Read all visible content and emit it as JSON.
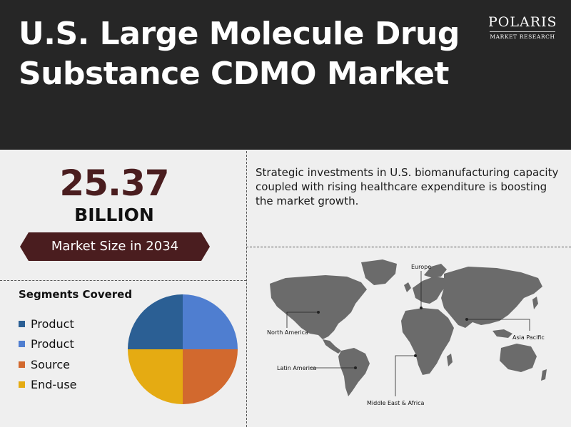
{
  "header": {
    "title": "U.S. Large Molecule Drug Substance CDMO Market",
    "logo_name": "POLARIS",
    "logo_sub": "MARKET RESEARCH"
  },
  "market": {
    "value": "25.37",
    "unit": "BILLION",
    "label": "Market Size in 2034"
  },
  "description": "Strategic investments in U.S. biomanufacturing capacity coupled with rising healthcare expenditure is boosting the market growth.",
  "segments": {
    "title": "Segments Covered",
    "items": [
      {
        "label": "Product",
        "color": "#2b5f94"
      },
      {
        "label": "Product",
        "color": "#4f7ed0"
      },
      {
        "label": "Source",
        "color": "#d2692e"
      },
      {
        "label": "End-use",
        "color": "#e5ab12"
      }
    ]
  },
  "regions": {
    "europe": "Europe",
    "north_america": "North America",
    "asia_pacific": "Asia Pacific",
    "latin_america": "Latin America",
    "mea": "Middle East & Africa"
  },
  "colors": {
    "header_bg": "#262626",
    "accent": "#4a1d1f",
    "map_land": "#6b6b6b"
  }
}
